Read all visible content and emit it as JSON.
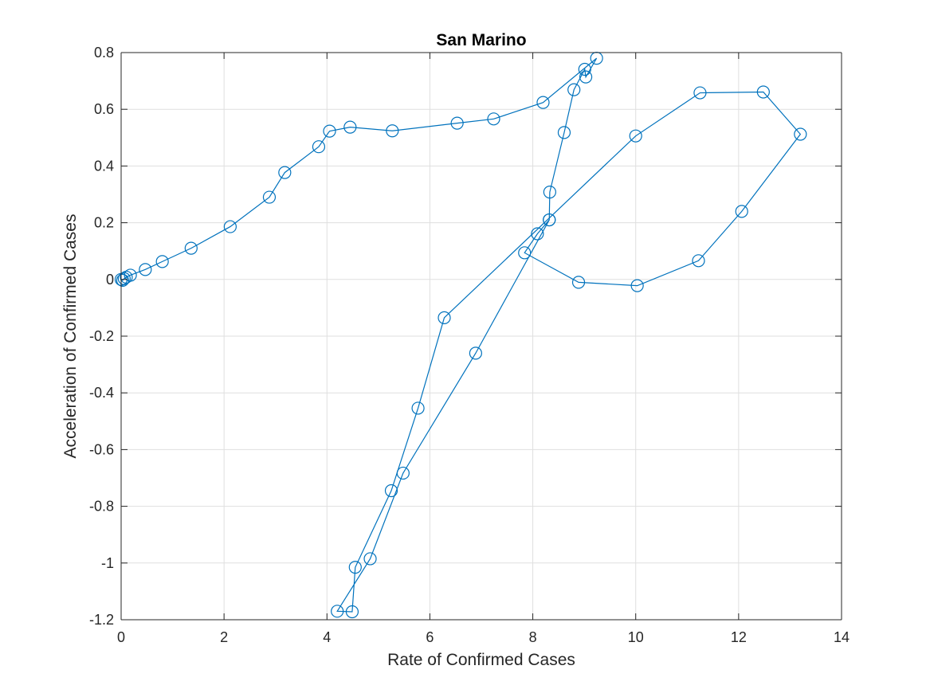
{
  "chart_data": {
    "type": "line",
    "title": "San Marino",
    "xlabel": "Rate of Confirmed Cases",
    "ylabel": "Acceleration of Confirmed Cases",
    "xlim": [
      0,
      14
    ],
    "ylim": [
      -1.2,
      0.8
    ],
    "xticks": [
      0,
      2,
      4,
      6,
      8,
      10,
      12,
      14
    ],
    "yticks": [
      -1.2,
      -1,
      -0.8,
      -0.6,
      -0.4,
      -0.2,
      0,
      0.2,
      0.4,
      0.6,
      0.8
    ],
    "xtick_labels": [
      "0",
      "2",
      "4",
      "6",
      "8",
      "10",
      "12",
      "14"
    ],
    "ytick_labels": [
      "-1.2",
      "-1",
      "-0.8",
      "-0.6",
      "-0.4",
      "-0.2",
      "0",
      "0.2",
      "0.4",
      "0.6",
      "0.8"
    ],
    "grid": true,
    "box": true,
    "marker": "circle",
    "color": "#0072BD",
    "series": [
      {
        "x": [
          0,
          0.03,
          0.06,
          0.1,
          0.18,
          0.47,
          0.8,
          1.36,
          2.12,
          2.88,
          3.18,
          3.84,
          4.05,
          4.45,
          5.27,
          6.53,
          7.24,
          8.2,
          9.24,
          9.03,
          9.01,
          8.8,
          8.61,
          8.33,
          8.32,
          8.09,
          7.84,
          8.89,
          10.03,
          11.22,
          12.06,
          13.2,
          12.48,
          11.25,
          10,
          6.28,
          5.77,
          5.25,
          4.55,
          4.49,
          4.2,
          4.84,
          5.48,
          6.89,
          8.32
        ],
        "y": [
          0,
          -0.003,
          0.003,
          0.008,
          0.015,
          0.035,
          0.063,
          0.11,
          0.186,
          0.29,
          0.377,
          0.468,
          0.523,
          0.537,
          0.524,
          0.551,
          0.566,
          0.624,
          0.78,
          0.714,
          0.741,
          0.669,
          0.518,
          0.308,
          0.21,
          0.161,
          0.094,
          -0.01,
          -0.022,
          0.066,
          0.24,
          0.512,
          0.661,
          0.658,
          0.506,
          -0.135,
          -0.454,
          -0.745,
          -1.015,
          -1.172,
          -1.17,
          -0.985,
          -0.683,
          -0.26,
          0.21
        ]
      }
    ]
  }
}
